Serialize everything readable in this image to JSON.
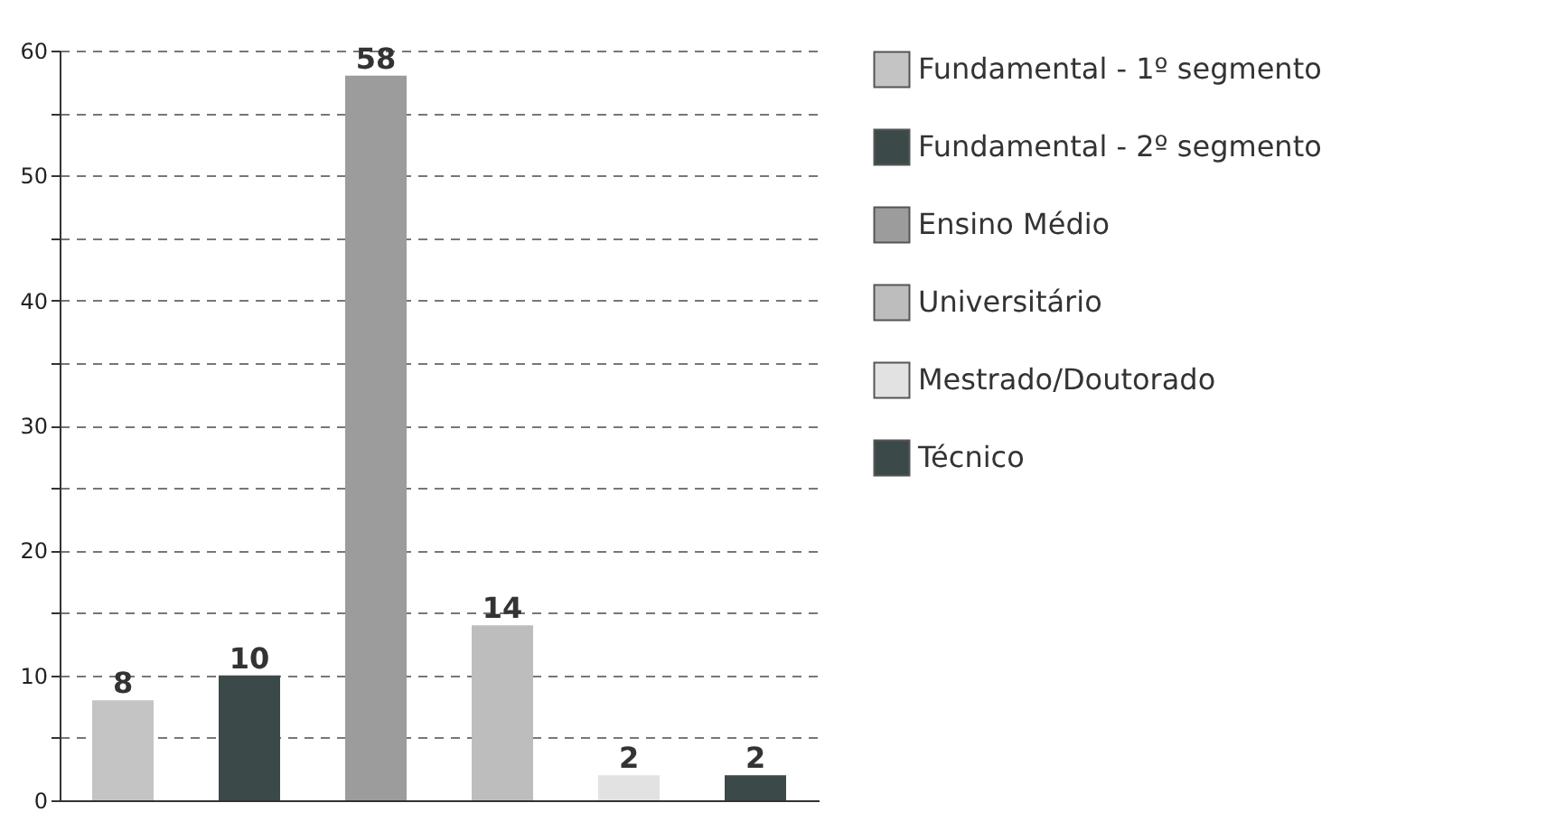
{
  "chart_data": {
    "type": "bar",
    "categories": [
      null,
      null,
      null,
      null,
      null,
      null
    ],
    "series": [
      {
        "name": "Fundamental - 1º segmento",
        "color": "#c4c4c4",
        "values": [
          8,
          null,
          null,
          null,
          null,
          null
        ]
      },
      {
        "name": "Fundamental - 2º segmento",
        "color": "#3b4a48",
        "values": [
          null,
          10,
          null,
          null,
          null,
          null
        ]
      },
      {
        "name": "Ensino Médio",
        "color": "#9c9c9c",
        "values": [
          null,
          null,
          58,
          null,
          null,
          null
        ]
      },
      {
        "name": "Universitário",
        "color": "#bdbdbd",
        "values": [
          null,
          null,
          null,
          14,
          null,
          null
        ]
      },
      {
        "name": "Mestrado/Doutorado",
        "color": "#e2e2e2",
        "values": [
          null,
          null,
          null,
          null,
          2,
          null
        ]
      },
      {
        "name": "Técnico",
        "color": "#3b4a48",
        "values": [
          null,
          null,
          null,
          null,
          null,
          2
        ]
      }
    ],
    "ylim": [
      0,
      60
    ],
    "yticks": [
      0,
      {
        "value": 5,
        "label": null
      },
      10,
      {
        "value": 15,
        "label": null
      },
      20,
      {
        "value": 25,
        "label": null
      },
      30,
      {
        "value": 35,
        "label": null
      },
      40,
      {
        "value": 45,
        "label": null
      },
      50,
      {
        "value": 55,
        "label": null
      },
      60
    ],
    "grid": "y",
    "line_style": "dashed",
    "legend": "right",
    "data_labels": true,
    "tick_labels": "y"
  }
}
